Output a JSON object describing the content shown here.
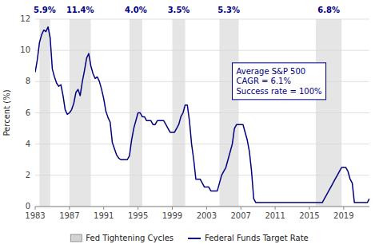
{
  "chart_data": {
    "type": "line",
    "ylabel": "Percent (%)",
    "xlim": [
      1983,
      2022
    ],
    "xticks": [
      1983,
      1987,
      1991,
      1995,
      1999,
      2003,
      2007,
      2011,
      2015,
      2019
    ],
    "ylim": [
      0,
      12
    ],
    "yticks": [
      0,
      2,
      4,
      6,
      8,
      10,
      12
    ],
    "grid": true,
    "legend": "bottom",
    "x": [
      1983.0,
      1983.25,
      1983.5,
      1983.75,
      1984.0,
      1984.25,
      1984.5,
      1984.75,
      1985.0,
      1985.25,
      1985.5,
      1985.75,
      1986.0,
      1986.25,
      1986.5,
      1986.75,
      1987.0,
      1987.25,
      1987.5,
      1987.75,
      1988.0,
      1988.25,
      1988.5,
      1988.75,
      1989.0,
      1989.25,
      1989.5,
      1989.75,
      1990.0,
      1990.25,
      1990.5,
      1990.75,
      1991.0,
      1991.25,
      1991.5,
      1991.75,
      1992.0,
      1992.25,
      1992.5,
      1992.75,
      1993.0,
      1993.25,
      1993.5,
      1993.75,
      1994.0,
      1994.25,
      1994.5,
      1994.75,
      1995.0,
      1995.25,
      1995.5,
      1995.75,
      1996.0,
      1996.25,
      1996.5,
      1996.75,
      1997.0,
      1997.25,
      1997.5,
      1997.75,
      1998.0,
      1998.25,
      1998.5,
      1998.75,
      1999.0,
      1999.25,
      1999.5,
      1999.75,
      2000.0,
      2000.25,
      2000.5,
      2000.75,
      2001.0,
      2001.25,
      2001.5,
      2001.75,
      2002.0,
      2002.25,
      2002.5,
      2002.75,
      2003.0,
      2003.25,
      2003.5,
      2003.75,
      2004.0,
      2004.25,
      2004.5,
      2004.75,
      2005.0,
      2005.25,
      2005.5,
      2005.75,
      2006.0,
      2006.25,
      2006.5,
      2006.75,
      2007.0,
      2007.25,
      2007.5,
      2007.75,
      2008.0,
      2008.25,
      2008.5,
      2008.75,
      2009.0,
      2009.25,
      2009.5,
      2009.75,
      2010.0,
      2010.25,
      2010.5,
      2010.75,
      2011.0,
      2011.25,
      2011.5,
      2011.75,
      2012.0,
      2012.25,
      2012.5,
      2012.75,
      2013.0,
      2013.25,
      2013.5,
      2013.75,
      2014.0,
      2014.25,
      2014.5,
      2014.75,
      2015.0,
      2015.25,
      2015.5,
      2015.75,
      2016.0,
      2016.25,
      2016.5,
      2016.75,
      2017.0,
      2017.25,
      2017.5,
      2017.75,
      2018.0,
      2018.25,
      2018.5,
      2018.75,
      2019.0,
      2019.25,
      2019.5,
      2019.75,
      2020.0,
      2020.25,
      2020.5,
      2020.75,
      2021.0,
      2021.25,
      2021.5,
      2021.75,
      2022.0
    ],
    "series": [
      {
        "name": "Federal Funds Target Rate",
        "color": "#000080",
        "values": [
          8.6,
          9.4,
          10.5,
          11.0,
          11.3,
          11.2,
          11.5,
          10.8,
          8.8,
          8.3,
          7.9,
          7.7,
          7.8,
          7.1,
          6.2,
          5.9,
          6.0,
          6.2,
          6.6,
          7.3,
          7.5,
          7.1,
          8.0,
          8.7,
          9.5,
          9.8,
          9.0,
          8.5,
          8.2,
          8.3,
          8.0,
          7.5,
          6.9,
          6.1,
          5.7,
          5.4,
          4.1,
          3.7,
          3.3,
          3.1,
          3.0,
          3.0,
          3.0,
          3.0,
          3.25,
          4.25,
          5.0,
          5.5,
          6.0,
          6.0,
          5.75,
          5.75,
          5.5,
          5.5,
          5.5,
          5.25,
          5.25,
          5.5,
          5.5,
          5.5,
          5.5,
          5.25,
          5.0,
          4.75,
          4.75,
          4.75,
          5.0,
          5.25,
          5.75,
          6.0,
          6.5,
          6.5,
          5.5,
          4.0,
          3.0,
          1.75,
          1.75,
          1.75,
          1.5,
          1.25,
          1.25,
          1.25,
          1.0,
          1.0,
          1.0,
          1.0,
          1.5,
          2.0,
          2.25,
          2.5,
          3.0,
          3.5,
          4.0,
          5.0,
          5.25,
          5.25,
          5.25,
          5.25,
          4.75,
          4.25,
          3.5,
          2.25,
          0.5,
          0.25,
          0.25,
          0.25,
          0.25,
          0.25,
          0.25,
          0.25,
          0.25,
          0.25,
          0.25,
          0.25,
          0.25,
          0.25,
          0.25,
          0.25,
          0.25,
          0.25,
          0.25,
          0.25,
          0.25,
          0.25,
          0.25,
          0.25,
          0.25,
          0.25,
          0.25,
          0.25,
          0.25,
          0.25,
          0.25,
          0.25,
          0.25,
          0.5,
          0.75,
          1.0,
          1.25,
          1.5,
          1.75,
          2.0,
          2.25,
          2.5,
          2.5,
          2.5,
          2.25,
          1.75,
          1.5,
          0.25,
          0.25,
          0.25,
          0.25,
          0.25,
          0.25,
          0.25,
          0.5
        ]
      }
    ],
    "bands": {
      "name": "Fed Tightening Cycles",
      "color": "#d3d3d3",
      "ranges": [
        [
          1983.5,
          1984.75
        ],
        [
          1987.0,
          1989.5
        ],
        [
          1994.0,
          1995.5
        ],
        [
          1999.0,
          2000.5
        ],
        [
          2004.5,
          2006.75
        ],
        [
          2015.75,
          2018.75
        ]
      ],
      "labels": [
        "5.9%",
        "11.4%",
        "4.0%",
        "3.5%",
        "5.3%",
        "6.8%"
      ],
      "label_x": [
        1984.1,
        1988.25,
        1994.75,
        1999.75,
        2005.6,
        2017.25
      ]
    },
    "annotations": [
      {
        "text": "Average S&P 500\nCAGR = 6.1%\nSuccess rate = 100%",
        "x": 2006,
        "y": 9.2
      }
    ]
  }
}
